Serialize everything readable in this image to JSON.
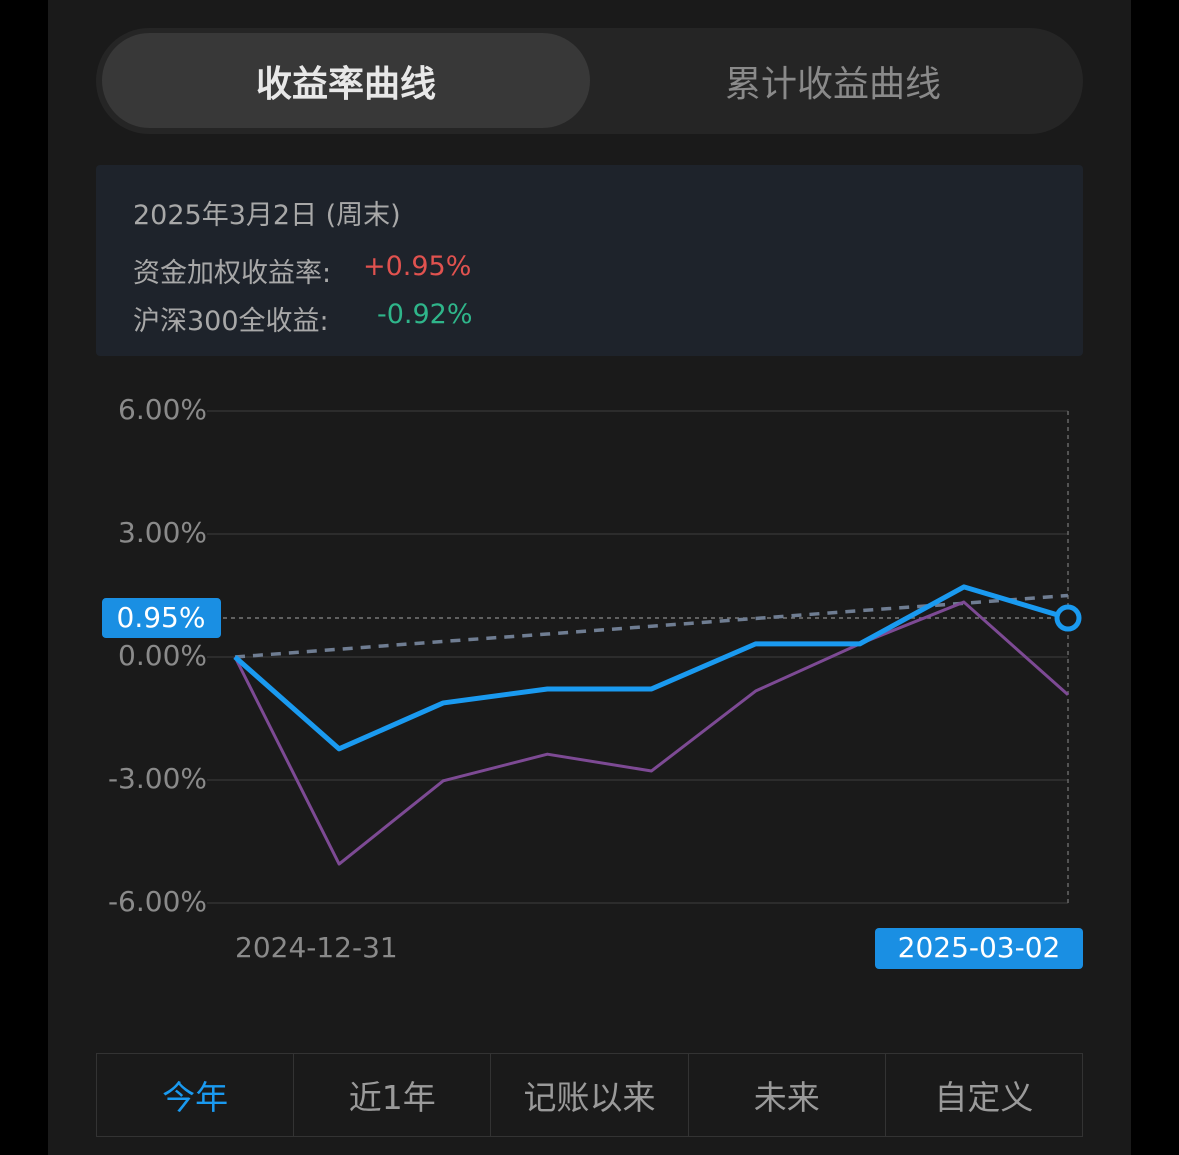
{
  "tabs": [
    "收益率曲线",
    "累计收益曲线"
  ],
  "info": {
    "date": "2025年3月2日 (周末)",
    "rows": [
      {
        "label": "资金加权收益率:",
        "value": "+0.95%"
      },
      {
        "label": "沪深300全收益:",
        "value": "-0.92%"
      }
    ]
  },
  "chart_data": {
    "type": "line",
    "categories": [
      "2024-12-31",
      null,
      null,
      null,
      null,
      null,
      null,
      null,
      "2025-03-02"
    ],
    "series": [
      {
        "color": "#1a9af0",
        "width": 5,
        "values": [
          0,
          -2.24,
          -1.12,
          -0.78,
          -0.78,
          0.32,
          0.32,
          1.71,
          0.95
        ]
      },
      {
        "color": "#7d4a94",
        "width": 3,
        "values": [
          0,
          -5.05,
          -3.02,
          -2.37,
          -2.78,
          -0.83,
          0.32,
          1.34,
          -0.92
        ]
      },
      {
        "color": "#6f7d92",
        "width": 3.5,
        "dashed": true,
        "values": [
          0,
          0.19,
          0.38,
          0.56,
          0.75,
          0.94,
          1.13,
          1.31,
          1.5
        ]
      }
    ],
    "ylim": [
      -6,
      6
    ],
    "yticks": [
      {
        "value": 6,
        "label": "6.00%"
      },
      {
        "value": 3,
        "label": "3.00%"
      },
      {
        "value": 0,
        "label": "0.00%"
      },
      {
        "value": -3,
        "label": "-3.00%"
      },
      {
        "value": -6,
        "label": "-6.00%"
      }
    ],
    "grid": true,
    "cursor": {
      "index": 8,
      "value": 0.95,
      "label": "0.95%"
    }
  },
  "ranges": [
    "今年",
    "近1年",
    "记账以来",
    "未来",
    "自定义"
  ]
}
